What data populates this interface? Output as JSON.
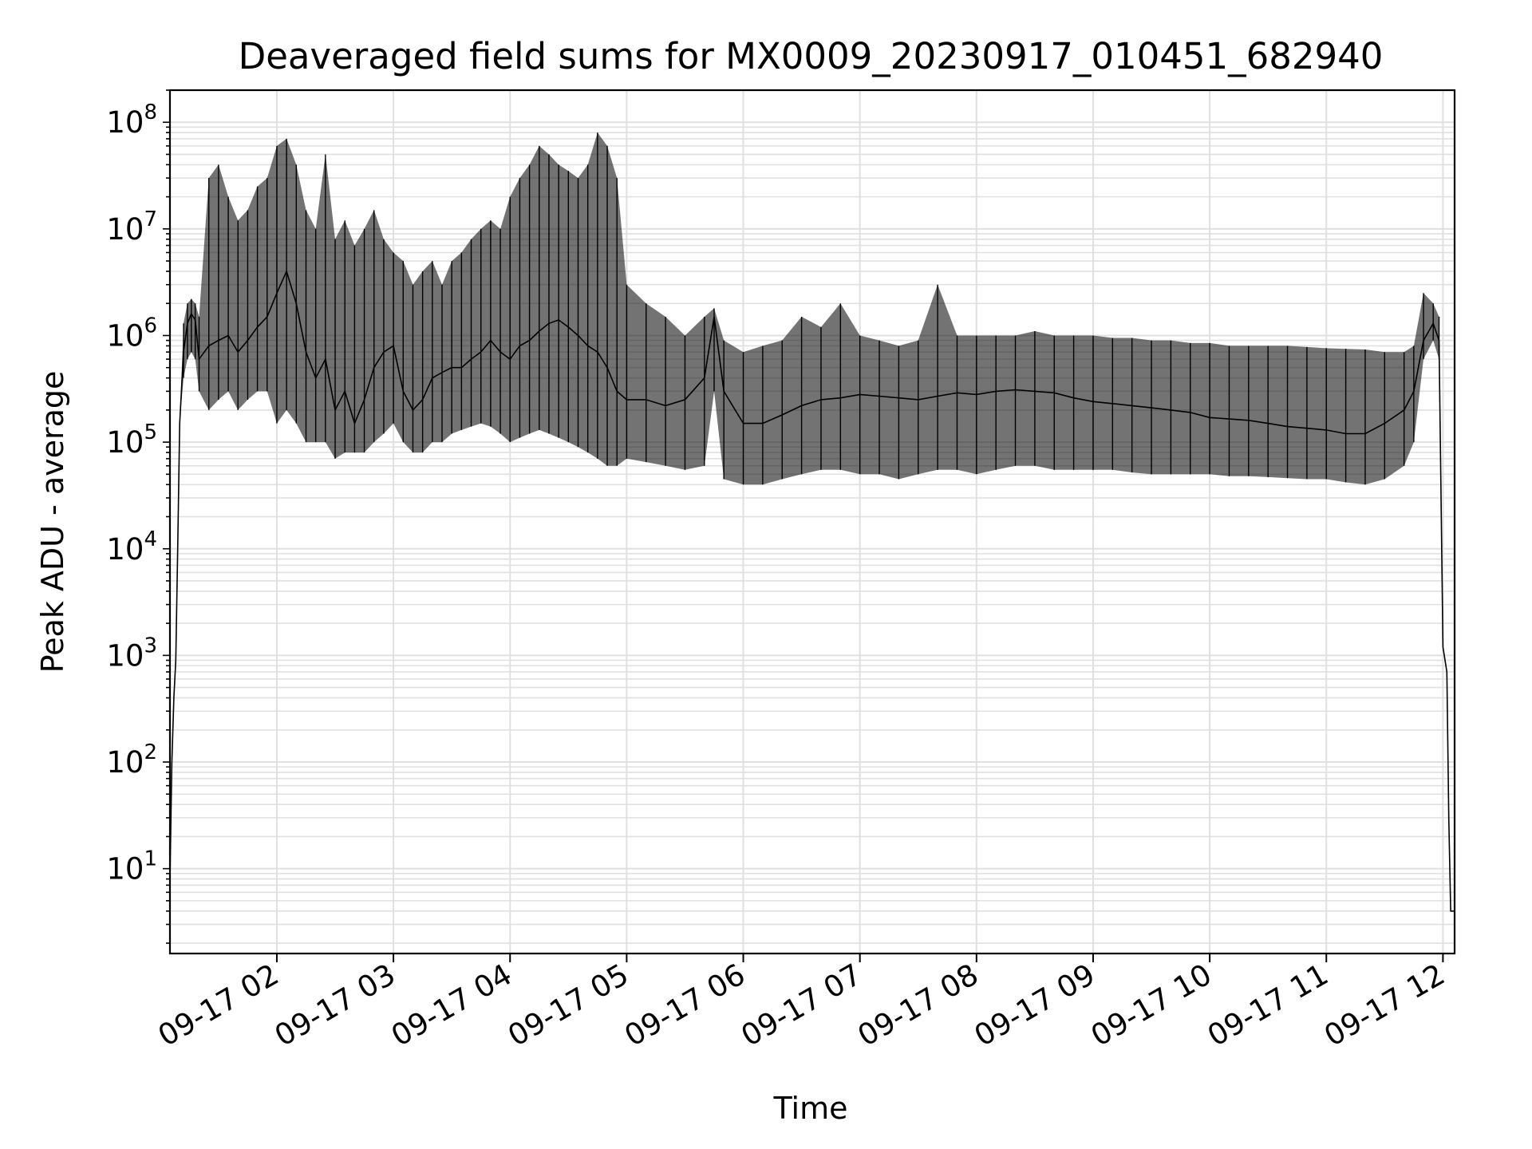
{
  "chart_data": {
    "type": "line",
    "title": "Deaveraged field sums for MX0009_20230917_010451_682940",
    "xlabel": "Time",
    "ylabel": "Peak ADU - average",
    "y_scale": "log",
    "ylim": [
      1.6,
      200000000
    ],
    "xlim": [
      "2023-09-17T01:05",
      "2023-09-17T12:06"
    ],
    "grid": true,
    "line_color": "#000000",
    "grid_color": "#e0e0e0",
    "x_ticks": [
      {
        "t": "2023-09-17T02:00",
        "label": "09-17 02"
      },
      {
        "t": "2023-09-17T03:00",
        "label": "09-17 03"
      },
      {
        "t": "2023-09-17T04:00",
        "label": "09-17 04"
      },
      {
        "t": "2023-09-17T05:00",
        "label": "09-17 05"
      },
      {
        "t": "2023-09-17T06:00",
        "label": "09-17 06"
      },
      {
        "t": "2023-09-17T07:00",
        "label": "09-17 07"
      },
      {
        "t": "2023-09-17T08:00",
        "label": "09-17 08"
      },
      {
        "t": "2023-09-17T09:00",
        "label": "09-17 09"
      },
      {
        "t": "2023-09-17T10:00",
        "label": "09-17 10"
      },
      {
        "t": "2023-09-17T11:00",
        "label": "09-17 11"
      },
      {
        "t": "2023-09-17T12:00",
        "label": "09-17 12"
      }
    ],
    "y_ticks": [
      {
        "value": 10,
        "base": "10",
        "exp": "1"
      },
      {
        "value": 100,
        "base": "10",
        "exp": "2"
      },
      {
        "value": 1000,
        "base": "10",
        "exp": "3"
      },
      {
        "value": 10000,
        "base": "10",
        "exp": "4"
      },
      {
        "value": 100000,
        "base": "10",
        "exp": "5"
      },
      {
        "value": 1000000,
        "base": "10",
        "exp": "6"
      },
      {
        "value": 10000000,
        "base": "10",
        "exp": "7"
      },
      {
        "value": 100000000,
        "base": "10",
        "exp": "8"
      }
    ],
    "series": [
      {
        "x": [
          "2023-09-17T01:05",
          "2023-09-17T01:06",
          "2023-09-17T01:07",
          "2023-09-17T01:08",
          "2023-09-17T01:09",
          "2023-09-17T01:10",
          "2023-09-17T01:12",
          "2023-09-17T01:14",
          "2023-09-17T01:16",
          "2023-09-17T01:18",
          "2023-09-17T01:20",
          "2023-09-17T01:25",
          "2023-09-17T01:30",
          "2023-09-17T01:35",
          "2023-09-17T01:40",
          "2023-09-17T01:45",
          "2023-09-17T01:50",
          "2023-09-17T01:55",
          "2023-09-17T02:00",
          "2023-09-17T02:05",
          "2023-09-17T02:10",
          "2023-09-17T02:15",
          "2023-09-17T02:20",
          "2023-09-17T02:25",
          "2023-09-17T02:30",
          "2023-09-17T02:35",
          "2023-09-17T02:40",
          "2023-09-17T02:45",
          "2023-09-17T02:50",
          "2023-09-17T02:55",
          "2023-09-17T03:00",
          "2023-09-17T03:05",
          "2023-09-17T03:10",
          "2023-09-17T03:15",
          "2023-09-17T03:20",
          "2023-09-17T03:25",
          "2023-09-17T03:30",
          "2023-09-17T03:35",
          "2023-09-17T03:40",
          "2023-09-17T03:45",
          "2023-09-17T03:50",
          "2023-09-17T03:55",
          "2023-09-17T04:00",
          "2023-09-17T04:05",
          "2023-09-17T04:10",
          "2023-09-17T04:15",
          "2023-09-17T04:20",
          "2023-09-17T04:25",
          "2023-09-17T04:30",
          "2023-09-17T04:35",
          "2023-09-17T04:40",
          "2023-09-17T04:45",
          "2023-09-17T04:50",
          "2023-09-17T04:55",
          "2023-09-17T05:00",
          "2023-09-17T05:10",
          "2023-09-17T05:20",
          "2023-09-17T05:30",
          "2023-09-17T05:40",
          "2023-09-17T05:45",
          "2023-09-17T05:50",
          "2023-09-17T06:00",
          "2023-09-17T06:10",
          "2023-09-17T06:20",
          "2023-09-17T06:30",
          "2023-09-17T06:40",
          "2023-09-17T06:50",
          "2023-09-17T07:00",
          "2023-09-17T07:10",
          "2023-09-17T07:20",
          "2023-09-17T07:30",
          "2023-09-17T07:40",
          "2023-09-17T07:50",
          "2023-09-17T08:00",
          "2023-09-17T08:10",
          "2023-09-17T08:20",
          "2023-09-17T08:30",
          "2023-09-17T08:40",
          "2023-09-17T08:50",
          "2023-09-17T09:00",
          "2023-09-17T09:10",
          "2023-09-17T09:20",
          "2023-09-17T09:30",
          "2023-09-17T09:40",
          "2023-09-17T09:50",
          "2023-09-17T10:00",
          "2023-09-17T10:10",
          "2023-09-17T10:20",
          "2023-09-17T10:30",
          "2023-09-17T10:40",
          "2023-09-17T10:50",
          "2023-09-17T11:00",
          "2023-09-17T11:10",
          "2023-09-17T11:20",
          "2023-09-17T11:30",
          "2023-09-17T11:40",
          "2023-09-17T11:45",
          "2023-09-17T11:50",
          "2023-09-17T11:55",
          "2023-09-17T11:58",
          "2023-09-17T12:00",
          "2023-09-17T12:02",
          "2023-09-17T12:03",
          "2023-09-17T12:04",
          "2023-09-17T12:05",
          "2023-09-17T12:06"
        ],
        "y": [
          8,
          100,
          400,
          900,
          10000,
          150000,
          700000,
          1300000,
          1600000,
          1400000,
          600000,
          800000,
          900000,
          1000000,
          700000,
          900000,
          1200000,
          1500000,
          2500000,
          4000000,
          2000000,
          700000,
          400000,
          600000,
          200000,
          300000,
          150000,
          250000,
          500000,
          700000,
          800000,
          300000,
          200000,
          250000,
          400000,
          450000,
          500000,
          500000,
          600000,
          700000,
          900000,
          700000,
          600000,
          800000,
          900000,
          1100000,
          1300000,
          1400000,
          1200000,
          1000000,
          800000,
          700000,
          500000,
          300000,
          250000,
          250000,
          220000,
          250000,
          400000,
          1500000,
          300000,
          150000,
          150000,
          180000,
          220000,
          250000,
          260000,
          280000,
          270000,
          260000,
          250000,
          270000,
          290000,
          280000,
          300000,
          310000,
          300000,
          290000,
          260000,
          240000,
          230000,
          220000,
          210000,
          200000,
          190000,
          170000,
          165000,
          160000,
          150000,
          140000,
          135000,
          130000,
          120000,
          120000,
          150000,
          200000,
          300000,
          900000,
          1300000,
          900000,
          1200,
          700,
          30,
          4,
          4,
          4
        ],
        "min_y": [
          8,
          100,
          400,
          900,
          10000,
          150000,
          400000,
          600000,
          700000,
          600000,
          300000,
          200000,
          250000,
          300000,
          200000,
          250000,
          300000,
          300000,
          150000,
          200000,
          150000,
          100000,
          100000,
          100000,
          70000,
          80000,
          80000,
          80000,
          100000,
          120000,
          150000,
          100000,
          80000,
          80000,
          100000,
          100000,
          120000,
          130000,
          140000,
          150000,
          140000,
          120000,
          100000,
          110000,
          120000,
          130000,
          120000,
          110000,
          100000,
          90000,
          80000,
          70000,
          60000,
          60000,
          70000,
          65000,
          60000,
          55000,
          60000,
          300000,
          45000,
          40000,
          40000,
          45000,
          50000,
          55000,
          55000,
          50000,
          50000,
          45000,
          50000,
          55000,
          55000,
          50000,
          55000,
          60000,
          60000,
          55000,
          55000,
          55000,
          55000,
          52000,
          50000,
          50000,
          50000,
          50000,
          48000,
          48000,
          47000,
          46000,
          45000,
          45000,
          42000,
          40000,
          45000,
          60000,
          100000,
          600000,
          900000,
          600000,
          1200,
          700,
          30,
          4,
          4,
          4
        ],
        "max_y": [
          8,
          100,
          400,
          900,
          10000,
          150000,
          1300000,
          2000000,
          2200000,
          2000000,
          1500000,
          30000000,
          40000000,
          20000000,
          12000000,
          15000000,
          25000000,
          30000000,
          60000000,
          70000000,
          40000000,
          15000000,
          10000000,
          50000000,
          8000000,
          12000000,
          7000000,
          10000000,
          15000000,
          8000000,
          6000000,
          5000000,
          3000000,
          4000000,
          5000000,
          3000000,
          5000000,
          6000000,
          8000000,
          10000000,
          12000000,
          10000000,
          20000000,
          30000000,
          40000000,
          60000000,
          50000000,
          40000000,
          35000000,
          30000000,
          40000000,
          80000000,
          60000000,
          30000000,
          3000000,
          2000000,
          1500000,
          1000000,
          1500000,
          1800000,
          900000,
          700000,
          800000,
          900000,
          1500000,
          1200000,
          2000000,
          1000000,
          900000,
          800000,
          900000,
          3000000,
          1000000,
          1000000,
          1000000,
          1000000,
          1100000,
          1000000,
          1000000,
          1000000,
          950000,
          950000,
          900000,
          900000,
          850000,
          850000,
          800000,
          800000,
          800000,
          800000,
          780000,
          760000,
          750000,
          740000,
          700000,
          700000,
          800000,
          2500000,
          2000000,
          1500000,
          1200,
          700,
          30,
          4,
          4,
          4
        ]
      }
    ]
  }
}
